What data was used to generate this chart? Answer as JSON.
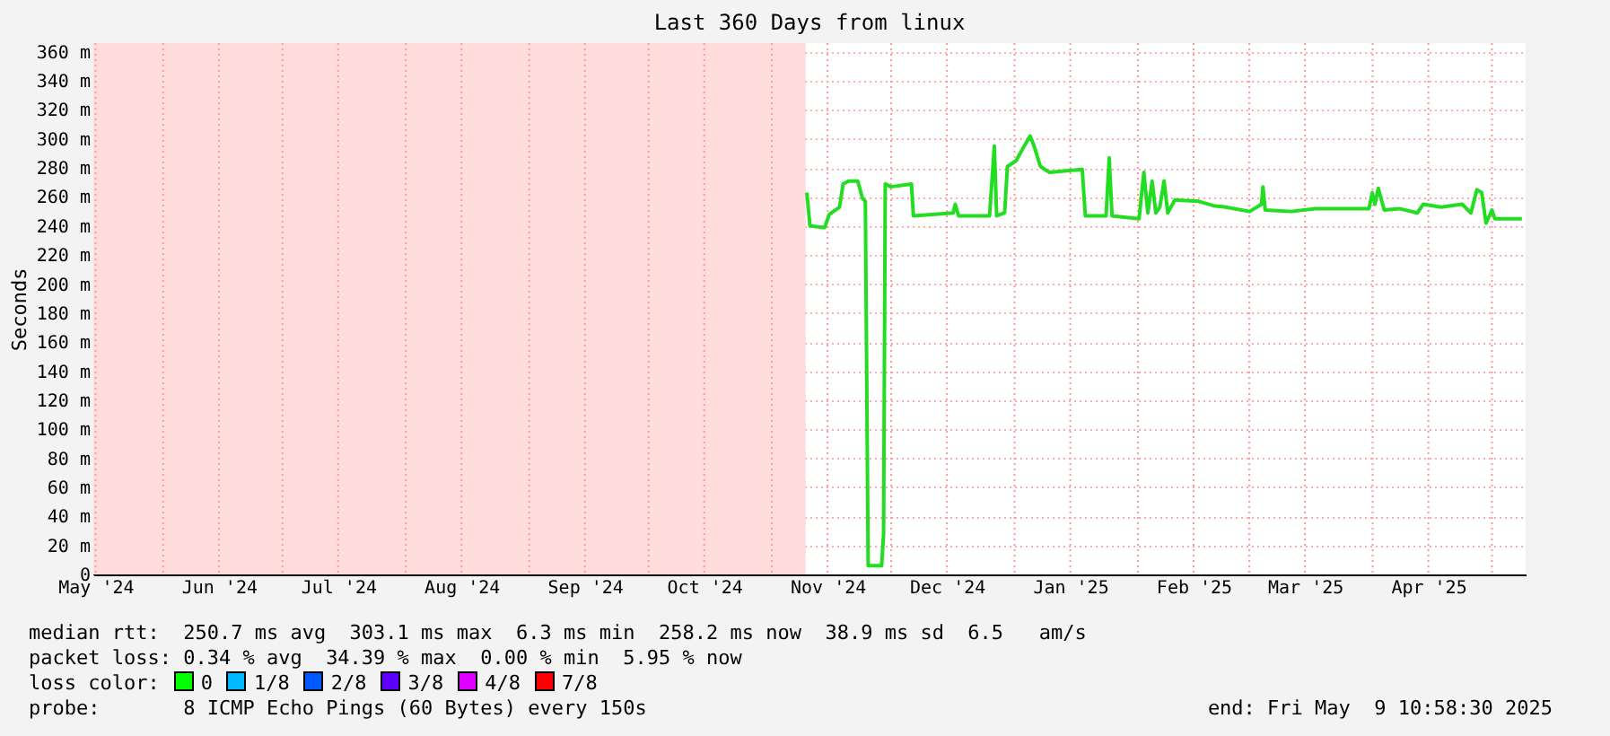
{
  "chart_data": {
    "type": "line",
    "title": "Last 360 Days from linux",
    "ylabel": "Seconds",
    "xlim": [
      "2024-05-14T10:58",
      "2025-05-09T10:58"
    ],
    "xticks": [
      {
        "value": "2024-05-15",
        "label": "May '24"
      },
      {
        "value": "2024-06-01",
        "label": null
      },
      {
        "value": "2024-06-15",
        "label": "Jun '24"
      },
      {
        "value": "2024-07-01",
        "label": null
      },
      {
        "value": "2024-07-15",
        "label": "Jul '24"
      },
      {
        "value": "2024-08-01",
        "label": null
      },
      {
        "value": "2024-08-15",
        "label": "Aug '24"
      },
      {
        "value": "2024-09-01",
        "label": null
      },
      {
        "value": "2024-09-15",
        "label": "Sep '24"
      },
      {
        "value": "2024-10-01",
        "label": null
      },
      {
        "value": "2024-10-15",
        "label": "Oct '24"
      },
      {
        "value": "2024-11-01",
        "label": null
      },
      {
        "value": "2024-11-15",
        "label": "Nov '24"
      },
      {
        "value": "2024-12-01",
        "label": null
      },
      {
        "value": "2024-12-15",
        "label": "Dec '24"
      },
      {
        "value": "2025-01-01",
        "label": null
      },
      {
        "value": "2025-01-15",
        "label": "Jan '25"
      },
      {
        "value": "2025-02-01",
        "label": null
      },
      {
        "value": "2025-02-15",
        "label": "Feb '25"
      },
      {
        "value": "2025-03-01",
        "label": null
      },
      {
        "value": "2025-03-15",
        "label": "Mar '25"
      },
      {
        "value": "2025-04-01",
        "label": null
      },
      {
        "value": "2025-04-15",
        "label": "Apr '25"
      },
      {
        "value": "2025-05-01",
        "label": null
      }
    ],
    "ylim": [
      0,
      366
    ],
    "yticks": [
      0,
      {
        "value": 20,
        "label": "20 m"
      },
      {
        "value": 40,
        "label": "40 m"
      },
      {
        "value": 60,
        "label": "60 m"
      },
      {
        "value": 80,
        "label": "80 m"
      },
      {
        "value": 100,
        "label": "100 m"
      },
      {
        "value": 120,
        "label": "120 m"
      },
      {
        "value": 140,
        "label": "140 m"
      },
      {
        "value": 160,
        "label": "160 m"
      },
      {
        "value": 180,
        "label": "180 m"
      },
      {
        "value": 200,
        "label": "200 m"
      },
      {
        "value": 220,
        "label": "220 m"
      },
      {
        "value": 240,
        "label": "240 m"
      },
      {
        "value": 260,
        "label": "260 m"
      },
      {
        "value": 280,
        "label": "280 m"
      },
      {
        "value": 300,
        "label": "300 m"
      },
      {
        "value": 320,
        "label": "320 m"
      },
      {
        "value": 340,
        "label": "340 m"
      },
      {
        "value": 360,
        "label": "360 m"
      }
    ],
    "grid": true,
    "bands": [
      {
        "axis": "x",
        "from": "2024-05-14T10:58",
        "to": "2024-11-09T12:00",
        "color": "#ffdddd"
      }
    ],
    "series": [
      {
        "color": "#22dd22",
        "x": [
          "2024-11-09T19:00",
          "2024-11-10T14:00",
          "2024-11-14T07:00",
          "2024-11-15T10:00",
          "2024-11-18",
          "2024-11-18T22:00",
          "2024-11-20T07:00",
          "2024-11-22T14:00",
          "2024-11-23T19:00",
          "2024-11-24T12:00",
          "2024-11-25T05:00",
          "2024-11-28T14:00",
          "2024-11-29T02:00",
          "2024-11-29T12:00",
          "2024-11-30T22:00",
          "2024-12-06T02:00",
          "2024-12-06T14:00",
          "2024-12-16T14:00",
          "2024-12-17T02:00",
          "2024-12-17T22:00",
          "2024-12-25T17:00",
          "2024-12-26T22:00",
          "2024-12-27T12:00",
          "2024-12-29T12:00",
          "2024-12-30T05:00",
          "2025-01-01T10:00",
          "2025-01-03",
          "2025-01-04T22:00",
          "2025-01-05T22:00",
          "2025-01-07T12:00",
          "2025-01-09T17:00",
          "2025-01-18",
          "2025-01-18T19:00",
          "2025-01-24",
          "2025-01-24T19:00",
          "2025-01-25T12:00",
          "2025-02-01T07:00",
          "2025-02-02T12:00",
          "2025-02-03T12:00",
          "2025-02-04T14:00",
          "2025-02-05T12:00",
          "2025-02-06T12:00",
          "2025-02-07T14:00",
          "2025-02-08T12:00",
          "2025-02-10T07:00",
          "2025-02-16T07:00",
          "2025-02-20",
          "2025-02-23T02:00",
          "2025-03-01T02:00",
          "2025-03-04T02:00",
          "2025-03-04T10:00",
          "2025-03-05",
          "2025-03-11T14:00",
          "2025-03-17T14:00",
          "2025-03-26T14:00",
          "2025-03-31T02:00",
          "2025-03-31T22:00",
          "2025-04-01T14:00",
          "2025-04-02T10:00",
          "2025-04-03T22:00",
          "2025-04-07T17:00",
          "2025-04-12T05:00",
          "2025-04-13T17:00",
          "2025-04-18T05:00",
          "2025-04-23T12:00",
          "2025-04-25T17:00",
          "2025-04-27T05:00",
          "2025-04-28T10:00",
          "2025-04-29T12:00",
          "2025-05-01",
          "2025-05-01T17:00",
          "2025-05-08T12:00"
        ],
        "values": [
          263,
          240,
          239,
          248,
          253,
          269,
          271,
          271,
          259,
          257,
          6,
          6,
          28,
          269,
          267,
          269,
          247,
          249,
          255,
          247,
          247,
          295,
          247,
          249,
          281,
          285,
          293,
          302,
          295,
          281,
          277,
          279,
          247,
          247,
          287,
          247,
          245,
          277,
          249,
          271,
          249,
          253,
          271,
          249,
          258,
          257,
          254,
          253,
          250,
          255,
          267,
          251,
          250,
          252,
          252,
          252,
          263,
          255,
          266,
          251,
          252,
          249,
          255,
          253,
          255,
          249,
          265,
          263,
          242,
          251,
          245,
          245
        ]
      }
    ],
    "annotations": [
      "median rtt:  250.7 ms avg  303.1 ms max  6.3 ms min  258.2 ms now  38.9 ms sd  6.5   am/s",
      "packet loss: 0.34 % avg  34.39 % max  0.00 % min  5.95 % now",
      "loss color:",
      "0",
      "1/8",
      "2/8",
      "3/8",
      "4/8",
      "7/8",
      "probe:       8 ICMP Echo Pings (60 Bytes) every 150s",
      "end: Fri May  9 10:58:30 2025"
    ]
  }
}
